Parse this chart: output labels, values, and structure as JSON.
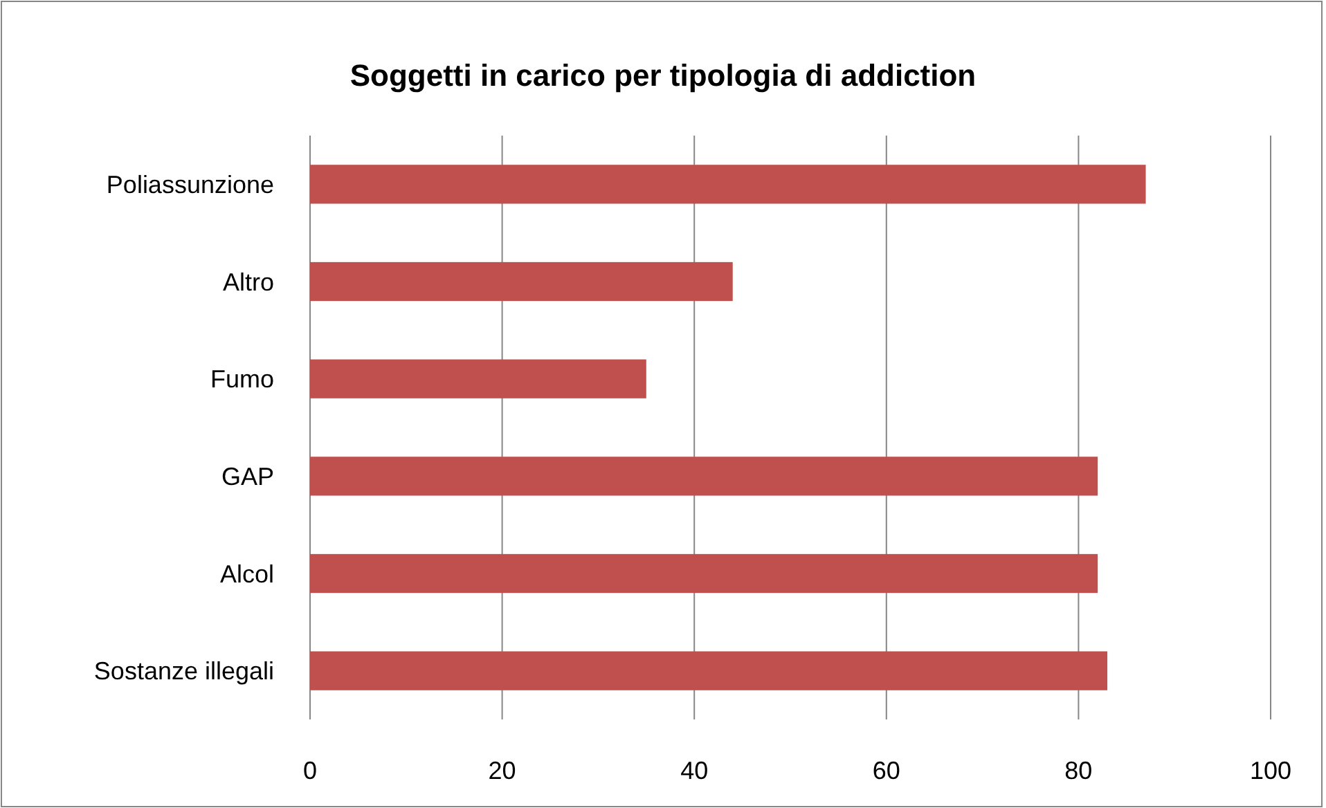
{
  "chart_data": {
    "type": "bar",
    "orientation": "horizontal",
    "title": "Soggetti in carico per tipologia di addiction",
    "categories": [
      "Poliassunzione",
      "Altro",
      "Fumo",
      "GAP",
      "Alcol",
      "Sostanze illegali"
    ],
    "values": [
      87,
      44,
      35,
      82,
      82,
      83
    ],
    "color": "#c0504d",
    "xlim": [
      0,
      100
    ],
    "xticks": [
      0,
      20,
      40,
      60,
      80,
      100
    ],
    "grid": "x"
  }
}
